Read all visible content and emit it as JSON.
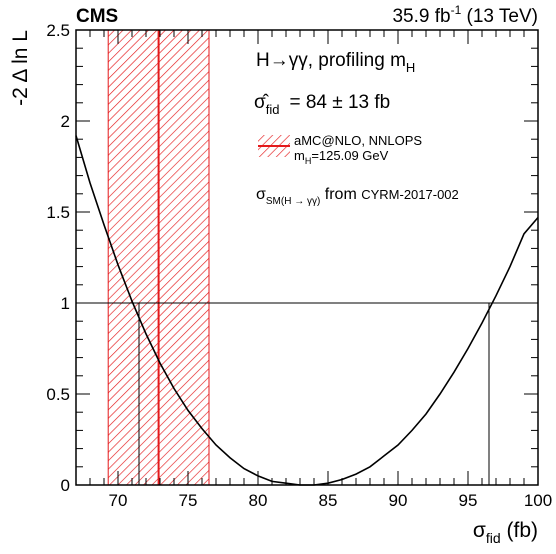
{
  "header": {
    "experiment": "CMS",
    "lumi": "35.9 fb",
    "lumi_exp": "-1",
    "energy": " (13 TeV)"
  },
  "legend": {
    "process_prefix": "H→γγ, profiling m",
    "process_sub": "H",
    "sigma_hat": "σ̂",
    "sigma_sub": "fid",
    "result": "=   84 ± 13 fb",
    "prediction_line1": "aMC@NLO, NNLOPS",
    "prediction_line2_prefix": "m",
    "prediction_line2_sub": "H",
    "prediction_line2_rest": "=125.09 GeV",
    "sm_prefix": "σ",
    "sm_sub": "SM",
    "sm_paren": "(H → γγ)",
    "sm_from": " from ",
    "sm_ref": "CYRM-2017-002"
  },
  "axes": {
    "y_label": "-2 Δ ln L",
    "x_label_main": "σ",
    "x_label_sub": "fid",
    "x_label_unit": " (fb)"
  },
  "chart_data": {
    "type": "line",
    "xlim": [
      67,
      100
    ],
    "ylim": [
      0,
      2.5
    ],
    "x_ticks": [
      70,
      75,
      80,
      85,
      90,
      95,
      100
    ],
    "y_ticks": [
      0,
      0.5,
      1,
      1.5,
      2,
      2.5
    ],
    "x_tick_labels": [
      "70",
      "75",
      "80",
      "85",
      "90",
      "95",
      "100"
    ],
    "y_tick_labels": [
      "0",
      "0.5",
      "1",
      "1.5",
      "2",
      "2.5"
    ],
    "series": [
      {
        "color": "#000000",
        "x": [
          67.0,
          68.0,
          69.0,
          70.0,
          71.0,
          72.0,
          73.0,
          74.0,
          75.0,
          76.0,
          77.0,
          78.0,
          79.0,
          80.0,
          81.0,
          82.0,
          83.0,
          84.0,
          85.0,
          86.0,
          87.0,
          88.0,
          89.0,
          90.0,
          91.0,
          92.0,
          93.0,
          94.0,
          95.0,
          96.0,
          97.0,
          98.0,
          99.0,
          100.0
        ],
        "y": [
          1.92,
          1.66,
          1.43,
          1.21,
          1.01,
          0.83,
          0.67,
          0.53,
          0.41,
          0.31,
          0.22,
          0.15,
          0.09,
          0.05,
          0.02,
          0.01,
          0.0,
          0.0,
          0.01,
          0.03,
          0.06,
          0.1,
          0.16,
          0.22,
          0.3,
          0.39,
          0.5,
          0.62,
          0.75,
          0.89,
          1.04,
          1.2,
          1.38,
          1.47
        ]
      }
    ],
    "reference_line_y": 1,
    "interval_lines_x": [
      71.5,
      96.5
    ],
    "prediction": {
      "central": 72.9,
      "band": [
        69.3,
        76.5
      ],
      "color": "#e41a1c"
    }
  }
}
